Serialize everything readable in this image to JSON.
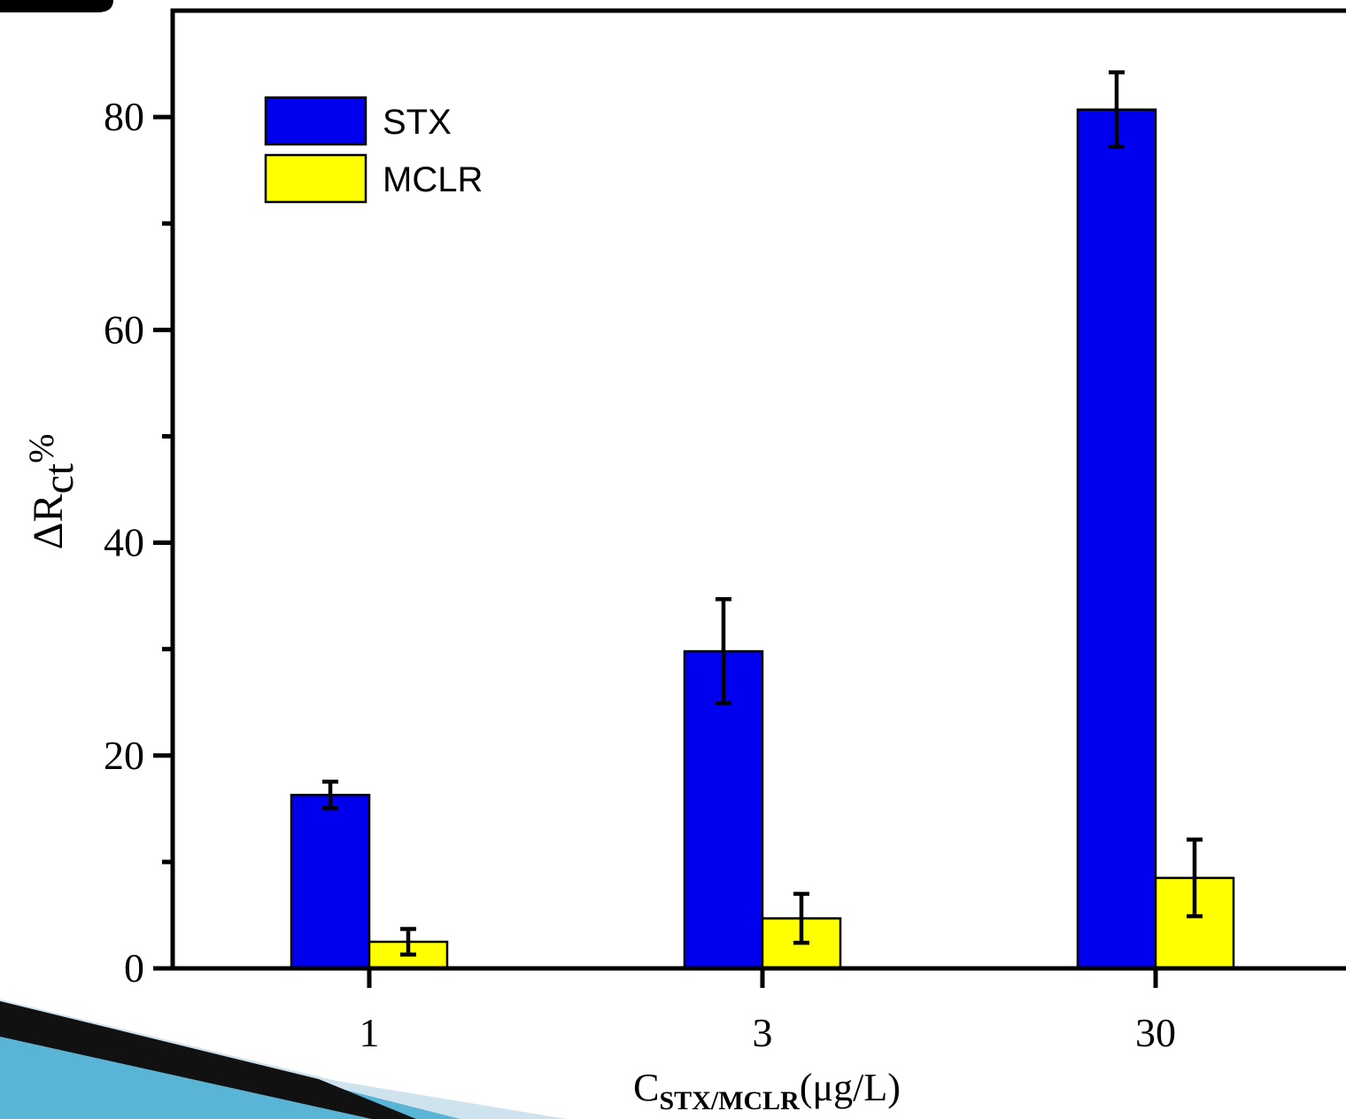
{
  "chart_data": {
    "type": "bar",
    "categories": [
      "1",
      "3",
      "30"
    ],
    "series": [
      {
        "name": "STX",
        "color": "#0000ee",
        "values": [
          16.3,
          29.8,
          80.7
        ],
        "errors": [
          1.25,
          4.9,
          3.5
        ]
      },
      {
        "name": "MCLR",
        "color": "#ffff00",
        "values": [
          2.5,
          4.7,
          8.5
        ],
        "errors": [
          1.2,
          2.3,
          3.6
        ]
      }
    ],
    "ylim": [
      0,
      90
    ],
    "yticks": [
      0,
      20,
      40,
      60,
      80
    ],
    "yminorticks": [
      10,
      30,
      50,
      70
    ],
    "y_label": {
      "main": "ΔR",
      "sub": "ct",
      "suffix": "%"
    },
    "x_label": {
      "main": "C",
      "sub": "STX/MCLR",
      "suffix": "(μg/L)"
    },
    "legend": "upper left"
  }
}
